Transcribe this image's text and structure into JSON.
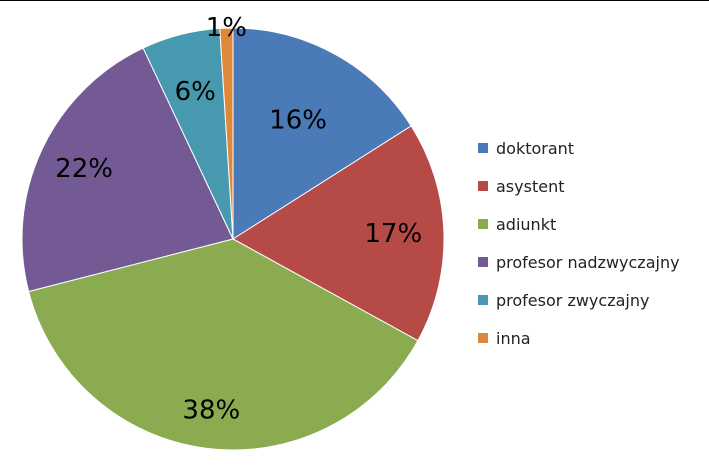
{
  "chart_data": {
    "type": "pie",
    "categories": [
      "doktorant",
      "asystent",
      "adiunkt",
      "profesor nadzwyczajny",
      "profesor zwyczajny",
      "inna"
    ],
    "values": [
      16,
      17,
      38,
      22,
      6,
      1
    ],
    "data_labels": [
      "16%",
      "17%",
      "38%",
      "22%",
      "6%",
      "1%"
    ],
    "colors": [
      "#4a7ab7",
      "#b54a47",
      "#8aab4f",
      "#735a95",
      "#4699af",
      "#e0883a"
    ],
    "start_angle_deg": 0,
    "direction": "clockwise",
    "legend_position": "right"
  }
}
